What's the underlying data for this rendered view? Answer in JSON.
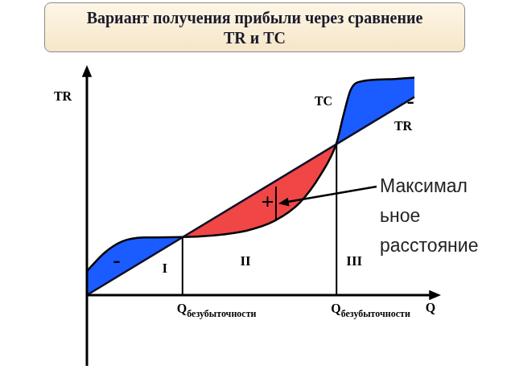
{
  "chart_data": {
    "type": "line",
    "title": "Вариант получения прибыли через сравнение\nTR и TC",
    "xlabel": "Q",
    "ylabel": "TR",
    "xlim": [
      0,
      10
    ],
    "ylim": [
      -2,
      6.5
    ],
    "xticks": [],
    "yticks": [],
    "grid": false,
    "tick_labels": false,
    "series": [
      {
        "name": "TR",
        "color": "#10102a",
        "x": [
          0,
          9.25
        ],
        "values": [
          0,
          5.6
        ]
      },
      {
        "name": "TC",
        "color": "#000000",
        "x": [
          0,
          0.5,
          1.0,
          1.6,
          2.7,
          3.5,
          4.5,
          5.3,
          6.0,
          6.6,
          7.05,
          7.25,
          7.45,
          7.8,
          8.5,
          9.25
        ],
        "values": [
          0.68,
          1.2,
          1.52,
          1.63,
          1.64,
          1.68,
          1.82,
          2.1,
          2.6,
          3.4,
          4.3,
          5.1,
          5.8,
          6.05,
          6.1,
          6.15
        ]
      }
    ],
    "break_even": [
      {
        "x": 2.7,
        "y": 1.64,
        "label": "Q",
        "subscript": "безубыточности"
      },
      {
        "x": 7.05,
        "y": 4.27,
        "label": "Q",
        "subscript": "безубыточности"
      }
    ],
    "regions": [
      {
        "label": "I",
        "x": 2.2,
        "y": 0.73
      },
      {
        "label": "II",
        "x": 4.48,
        "y": 0.95
      },
      {
        "label": "III",
        "x": 7.55,
        "y": 0.95
      }
    ],
    "signs": [
      {
        "text": "-",
        "x": 0.84,
        "y": 0.95
      },
      {
        "text": "+",
        "x": 5.1,
        "y": 2.6
      },
      {
        "text": "-",
        "x": 9.14,
        "y": 5.45
      }
    ],
    "max_distance": {
      "x": 5.34,
      "y": [
        2.1,
        3.07
      ],
      "text": [
        "Максимал",
        "ьное",
        "расстояние"
      ]
    }
  }
}
